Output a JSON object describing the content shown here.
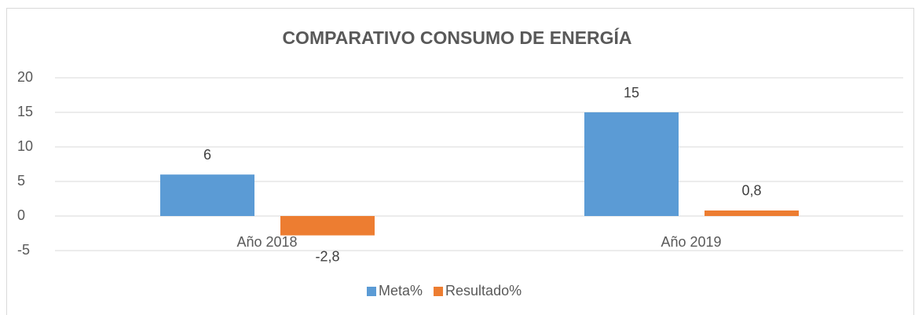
{
  "chart_data": {
    "type": "bar",
    "title": "COMPARATIVO CONSUMO DE ENERGÍA",
    "categories": [
      "Año 2018",
      "Año 2019"
    ],
    "series": [
      {
        "name": "Meta%",
        "color": "#5b9bd5",
        "values": [
          6,
          15
        ]
      },
      {
        "name": "Resultado%",
        "color": "#ed7d31",
        "values": [
          -2.8,
          0.8
        ],
        "value_labels": [
          "-2,8",
          "0,8"
        ]
      }
    ],
    "ylim": [
      -5,
      20
    ],
    "yticks": [
      -5,
      0,
      5,
      10,
      15,
      20
    ],
    "grid": true,
    "legend": "bottom"
  }
}
